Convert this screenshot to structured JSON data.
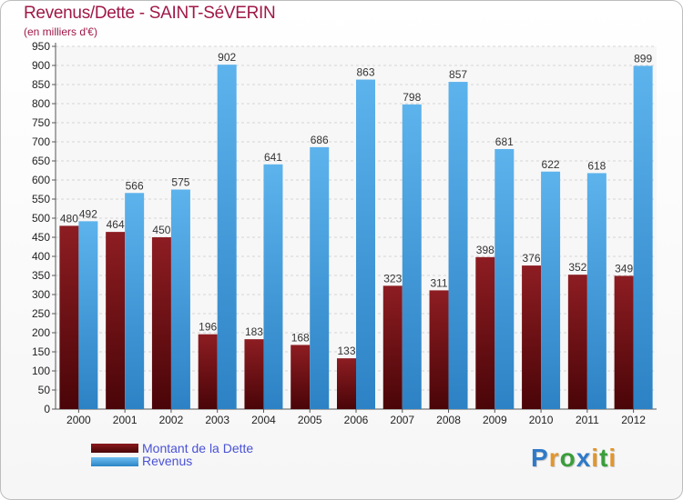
{
  "chart_data": {
    "type": "bar",
    "title": "Revenus/Dette - SAINT-SéVERIN",
    "subtitle": "(en milliers d'€)",
    "categories": [
      "2000",
      "2001",
      "2002",
      "2003",
      "2004",
      "2005",
      "2006",
      "2007",
      "2008",
      "2009",
      "2010",
      "2011",
      "2012"
    ],
    "series": [
      {
        "name": "Montant de la Dette",
        "color": "#6b0f12",
        "values": [
          480,
          464,
          450,
          196,
          183,
          168,
          133,
          323,
          311,
          398,
          376,
          352,
          349
        ]
      },
      {
        "name": "Revenus",
        "color": "#4aa3e0",
        "values": [
          492,
          566,
          575,
          902,
          641,
          686,
          863,
          798,
          857,
          681,
          622,
          618,
          899
        ]
      }
    ],
    "ylim": [
      0,
      950
    ],
    "yticks": [
      0,
      50,
      100,
      150,
      200,
      250,
      300,
      350,
      400,
      450,
      500,
      550,
      600,
      650,
      700,
      750,
      800,
      850,
      900,
      950
    ],
    "grid": true,
    "xlabel": "",
    "ylabel": "",
    "legend_position": "bottom-left"
  },
  "branding": {
    "logo_letters": [
      "P",
      "r",
      "o",
      "x",
      "i",
      "t",
      "i"
    ],
    "logo_colors": [
      "#2f7ac8",
      "#e2962c",
      "#3a9e3a",
      "#2f7ac8",
      "#e2962c",
      "#3a9e3a",
      "#e2962c"
    ]
  }
}
